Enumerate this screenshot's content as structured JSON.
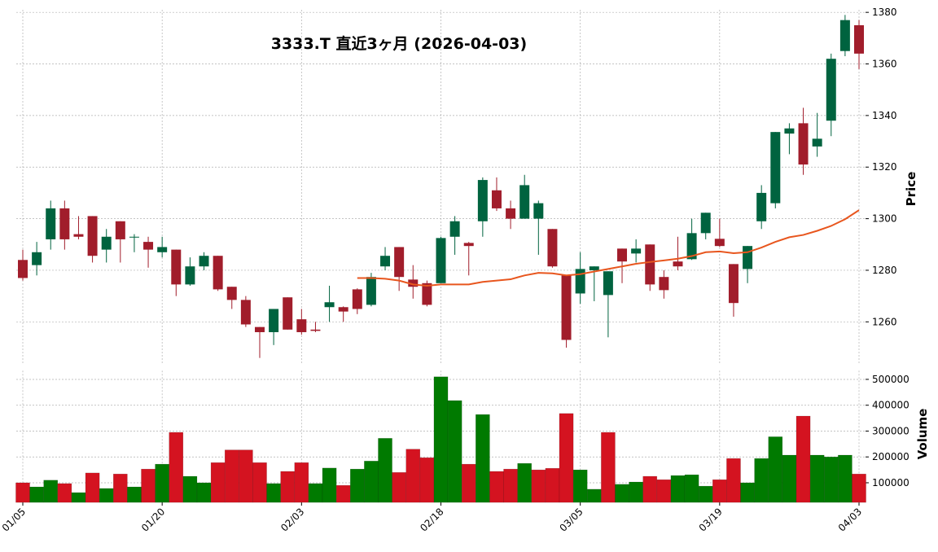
{
  "chart_data": {
    "type": "candlestick",
    "title": "3333.T  直近3ヶ月 (2026-04-03)",
    "categories": [
      "01/05",
      null,
      null,
      null,
      null,
      null,
      null,
      null,
      null,
      null,
      "01/20",
      null,
      null,
      null,
      null,
      null,
      null,
      null,
      null,
      null,
      "02/03",
      null,
      null,
      null,
      null,
      null,
      null,
      null,
      null,
      null,
      "02/18",
      null,
      null,
      null,
      null,
      null,
      null,
      null,
      null,
      null,
      "03/05",
      null,
      null,
      null,
      null,
      null,
      null,
      null,
      null,
      null,
      "03/19",
      null,
      null,
      null,
      null,
      null,
      null,
      null,
      null,
      null,
      "04/03"
    ],
    "open": [
      1284,
      1282,
      1292,
      1304,
      1294,
      1301,
      1288,
      1299,
      1293,
      1291,
      1287,
      1288,
      1274.5,
      1281.5,
      1285.6,
      1273.6,
      1268.5,
      1258,
      1256,
      1269.5,
      1261,
      1257,
      1265.7,
      1265.7,
      1272.6,
      1266.6,
      1281.5,
      1289,
      1276.4,
      1275,
      1275,
      1293,
      1290.6,
      1299,
      1311,
      1304,
      1300,
      1300,
      1296,
      1278,
      1271,
      1280,
      1270.4,
      1288.4,
      1286.5,
      1290,
      1277.4,
      1283.4,
      1284.3,
      1294.4,
      1292.2,
      1282.4,
      1280.5,
      1299,
      1306,
      1333,
      1337,
      1328,
      1338,
      1365,
      1375
    ],
    "high": [
      1288,
      1291,
      1307,
      1307,
      1301,
      1301,
      1296,
      1299,
      1294,
      1293,
      1293,
      1288,
      1285,
      1287,
      1285.6,
      1273.6,
      1270,
      1258,
      1265,
      1269.5,
      1265,
      1260,
      1274,
      1266,
      1273,
      1279,
      1289,
      1289,
      1282,
      1276,
      1293,
      1301,
      1291,
      1316,
      1316,
      1307,
      1317,
      1307,
      1296,
      1278,
      1287,
      1281.5,
      1279.6,
      1288.4,
      1292,
      1290,
      1280,
      1293,
      1300,
      1302.3,
      1300,
      1282.4,
      1289.4,
      1313,
      1333.6,
      1337,
      1343,
      1341,
      1364,
      1379,
      1377
    ],
    "low": [
      1276,
      1278,
      1288,
      1288,
      1292,
      1283,
      1283,
      1283,
      1287,
      1281,
      1285,
      1270,
      1274,
      1280,
      1272,
      1265,
      1258,
      1246,
      1251,
      1257,
      1255,
      1256,
      1260,
      1260,
      1263,
      1266,
      1280,
      1272,
      1269,
      1266,
      1275,
      1286,
      1278,
      1293,
      1303,
      1296,
      1300,
      1286,
      1281,
      1250,
      1267,
      1268,
      1254,
      1275,
      1283,
      1272,
      1269,
      1280,
      1284,
      1292,
      1289,
      1262,
      1275,
      1296,
      1304,
      1325,
      1317,
      1324,
      1332,
      1363,
      1358
    ],
    "close": [
      1277,
      1287,
      1304,
      1292,
      1293,
      1285.6,
      1293,
      1292,
      1293,
      1288,
      1289,
      1274.5,
      1281.5,
      1285.6,
      1272.6,
      1268.5,
      1259,
      1256,
      1265,
      1257,
      1256,
      1256.5,
      1267.6,
      1264,
      1265,
      1277.4,
      1285.6,
      1277.4,
      1273.6,
      1266.6,
      1292.5,
      1299,
      1289.4,
      1315,
      1304,
      1300,
      1313,
      1306,
      1281.5,
      1253,
      1280.5,
      1281.5,
      1279.6,
      1283.4,
      1288.4,
      1274.5,
      1272.3,
      1281.5,
      1294.4,
      1302.3,
      1289.4,
      1267.3,
      1289.4,
      1310,
      1333.6,
      1335,
      1321,
      1331,
      1362,
      1377,
      1364
    ],
    "volume": [
      100000,
      84000,
      110000,
      97000,
      62000,
      138000,
      78000,
      134000,
      84000,
      153000,
      172000,
      295000,
      125000,
      100000,
      178000,
      227000,
      227000,
      178000,
      97000,
      144000,
      178000,
      97000,
      157000,
      90000,
      153000,
      184000,
      272000,
      140000,
      230000,
      197000,
      510000,
      418000,
      172000,
      364000,
      144000,
      153000,
      175000,
      150000,
      156000,
      368000,
      150000,
      75000,
      295000,
      94000,
      103000,
      125000,
      112000,
      128000,
      131000,
      87000,
      112000,
      194000,
      100000,
      194000,
      278000,
      207000,
      358000,
      207000,
      200000,
      207000,
      134000
    ],
    "ma": [
      null,
      null,
      null,
      null,
      null,
      null,
      null,
      null,
      null,
      null,
      null,
      null,
      null,
      null,
      null,
      null,
      null,
      null,
      null,
      null,
      null,
      null,
      null,
      null,
      1277,
      1277,
      1276.7,
      1276,
      1274.5,
      1274,
      1274.5,
      1274.5,
      1274.5,
      1275.5,
      1276,
      1276.5,
      1278,
      1279,
      1278.8,
      1278,
      1278.5,
      1279.5,
      1280.5,
      1281.5,
      1282.5,
      1283.2,
      1283.8,
      1284.5,
      1285.5,
      1287,
      1287.3,
      1286.6,
      1287,
      1288.8,
      1291,
      1292.8,
      1293.7,
      1295.3,
      1297.2,
      1299.8,
      1303.3
    ],
    "up_color": "#00633f",
    "down_color": "#a11d2b",
    "volume_up_color": "#007a00",
    "volume_down_color": "#d41320",
    "ma_color": "#e8561e",
    "ylabel": "Price",
    "y2label": "Volume",
    "ylim": [
      1244,
      1381
    ],
    "yticks": [
      1260,
      1280,
      1300,
      1320,
      1340,
      1360,
      1380
    ],
    "y2lim": [
      24000,
      515000
    ],
    "y2ticks": [
      100000,
      200000,
      300000,
      400000,
      500000
    ],
    "grid": true
  }
}
